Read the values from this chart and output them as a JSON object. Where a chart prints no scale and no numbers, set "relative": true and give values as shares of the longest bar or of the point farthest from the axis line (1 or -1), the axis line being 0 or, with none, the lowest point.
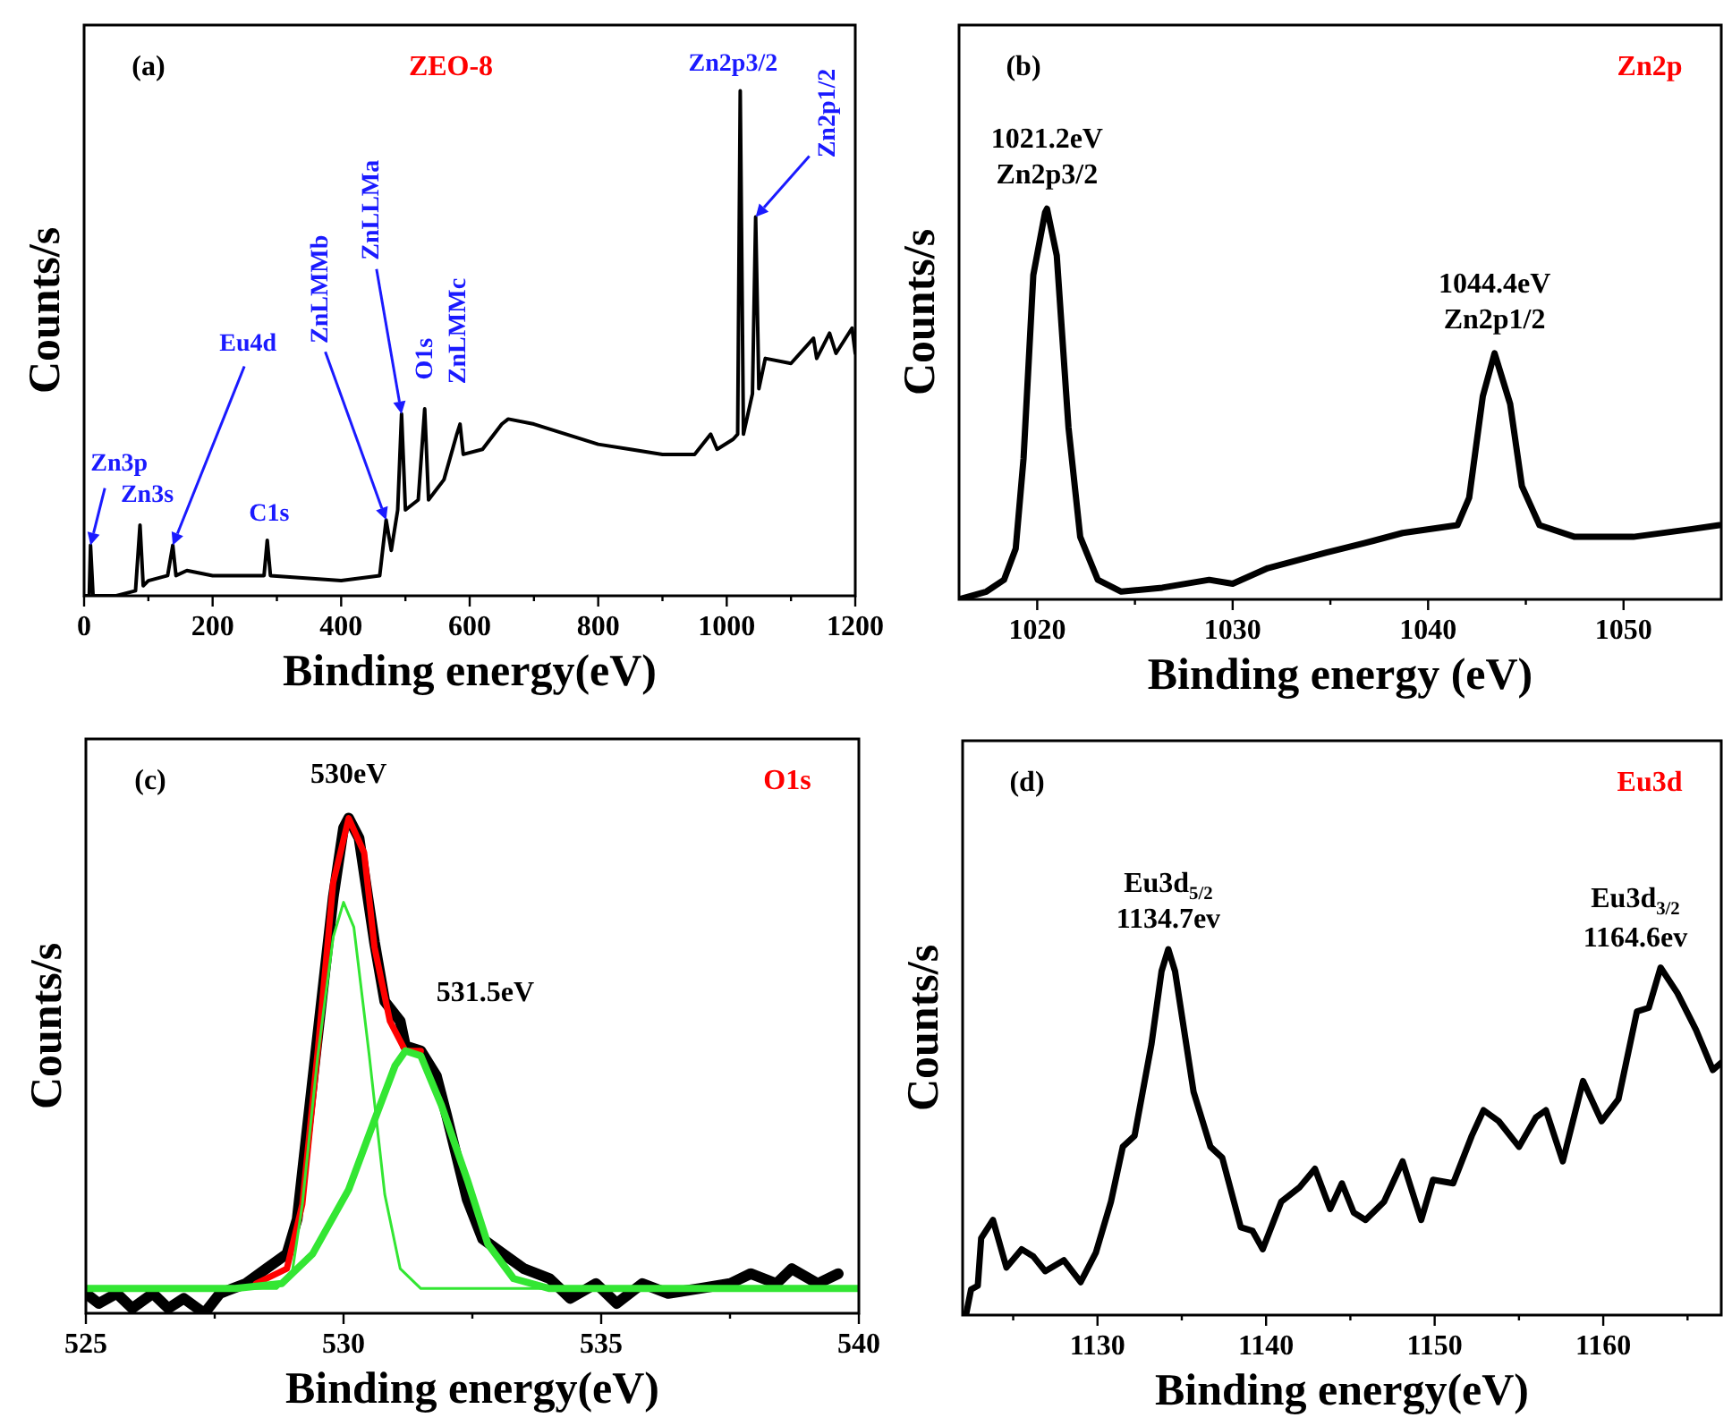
{
  "chart_data": [
    {
      "type": "line",
      "title": "(a)",
      "subtitle": "ZEO-8",
      "xlabel": "Binding energy(eV)",
      "ylabel": "Counts/s",
      "relative": true,
      "xlim": [
        0,
        1200
      ],
      "xticks": [
        0,
        {
          "value": 100,
          "label": null
        },
        200,
        {
          "value": 300,
          "label": null
        },
        400,
        {
          "value": 500,
          "label": null
        },
        600,
        {
          "value": 700,
          "label": null
        },
        800,
        {
          "value": 900,
          "label": null
        },
        1000,
        {
          "value": 1100,
          "label": null
        },
        1200
      ],
      "annotations": [
        {
          "text": "Zn3p",
          "x": 10,
          "y": 0.1
        },
        {
          "text": "Zn3s",
          "x": 87,
          "y": 0.14
        },
        {
          "text": "Eu4d",
          "x": 138,
          "y": 0.1
        },
        {
          "text": "C1s",
          "x": 285,
          "y": 0.11
        },
        {
          "text": "ZnLMMb",
          "x": 470,
          "y": 0.15
        },
        {
          "text": "ZnLLMa",
          "x": 494,
          "y": 0.36
        },
        {
          "text": "O1s",
          "x": 530,
          "y": 0.37
        },
        {
          "text": "ZnLMMc",
          "x": 585,
          "y": 0.34
        },
        {
          "text": "Zn2p3/2",
          "x": 1021,
          "y": 1.0
        },
        {
          "text": "Zn2p1/2",
          "x": 1045,
          "y": 0.75
        }
      ],
      "series": [
        {
          "color": "#000000",
          "x": [
            0,
            8,
            10,
            14,
            50,
            80,
            87,
            92,
            100,
            130,
            138,
            143,
            160,
            200,
            280,
            285,
            290,
            400,
            460,
            470,
            478,
            488,
            494,
            500,
            520,
            530,
            536,
            560,
            580,
            585,
            590,
            620,
            650,
            660,
            700,
            750,
            800,
            850,
            900,
            950,
            975,
            985,
            1010,
            1017,
            1021,
            1026,
            1040,
            1045,
            1050,
            1060,
            1100,
            1135,
            1140,
            1160,
            1170,
            1195,
            1200
          ],
          "values": [
            0,
            0,
            0.1,
            0,
            0,
            0.01,
            0.14,
            0.02,
            0.03,
            0.04,
            0.1,
            0.04,
            0.05,
            0.04,
            0.04,
            0.11,
            0.04,
            0.03,
            0.04,
            0.15,
            0.09,
            0.17,
            0.36,
            0.17,
            0.19,
            0.37,
            0.19,
            0.23,
            0.32,
            0.34,
            0.28,
            0.29,
            0.34,
            0.35,
            0.34,
            0.32,
            0.3,
            0.29,
            0.28,
            0.28,
            0.32,
            0.29,
            0.31,
            0.32,
            1.0,
            0.32,
            0.4,
            0.75,
            0.41,
            0.47,
            0.46,
            0.51,
            0.47,
            0.52,
            0.48,
            0.53,
            0.48
          ]
        }
      ]
    },
    {
      "type": "line",
      "title": "(b)",
      "subtitle": "Zn2p",
      "xlabel": "Binding energy (eV)",
      "ylabel": "Counts/s",
      "relative": true,
      "xlim": [
        1016,
        1055
      ],
      "xticks": [
        1020,
        {
          "value": 1025,
          "label": null
        },
        1030,
        {
          "value": 1035,
          "label": null
        },
        1040,
        {
          "value": 1045,
          "label": null
        },
        1050
      ],
      "annotations": [
        {
          "text": "1021.2eV\nZn2p3/2",
          "x": 1020.5,
          "y": 1.0
        },
        {
          "text": "1044.4eV\nZn2p1/2",
          "x": 1043.4,
          "y": 0.63
        }
      ],
      "series": [
        {
          "color": "#000000",
          "x": [
            1016.0,
            1017.4,
            1018.3,
            1018.9,
            1019.3,
            1019.8,
            1020.4,
            1020.5,
            1021.0,
            1021.6,
            1022.2,
            1023.1,
            1024.3,
            1026.4,
            1028.8,
            1030.0,
            1031.8,
            1034.8,
            1037.2,
            1038.7,
            1041.5,
            1042.1,
            1042.8,
            1043.4,
            1044.2,
            1044.8,
            1045.7,
            1047.5,
            1050.5,
            1053.5,
            1054.9
          ],
          "values": [
            0,
            0.02,
            0.05,
            0.13,
            0.36,
            0.83,
            0.99,
            1.0,
            0.88,
            0.44,
            0.16,
            0.05,
            0.02,
            0.03,
            0.05,
            0.04,
            0.08,
            0.12,
            0.15,
            0.17,
            0.19,
            0.26,
            0.52,
            0.63,
            0.5,
            0.29,
            0.19,
            0.16,
            0.16,
            0.18,
            0.19
          ]
        }
      ]
    },
    {
      "type": "line",
      "title": "(c)",
      "subtitle": "O1s",
      "xlabel": "Binding energy(eV)",
      "ylabel": "Counts/s",
      "relative": true,
      "xlim": [
        525,
        540
      ],
      "xticks": [
        525,
        {
          "value": 527.5,
          "label": null
        },
        530,
        {
          "value": 532.5,
          "label": null
        },
        535,
        {
          "value": 537.5,
          "label": null
        },
        540
      ],
      "annotations": [
        {
          "text": "530eV",
          "x": 530.1,
          "y": 1.0
        },
        {
          "text": "531.5eV",
          "x": 531.5,
          "y": 0.53
        }
      ],
      "series": [
        {
          "color": "#000000",
          "x": [
            525.0,
            525.25,
            525.6,
            525.9,
            526.3,
            526.6,
            526.9,
            527.3,
            527.6,
            528.1,
            528.5,
            528.9,
            529.1,
            529.4,
            529.8,
            530.0,
            530.1,
            530.3,
            530.6,
            530.8,
            531.1,
            531.2,
            531.5,
            531.8,
            532.0,
            532.4,
            532.7,
            533.1,
            533.5,
            534.0,
            534.4,
            534.9,
            535.3,
            535.8,
            536.3,
            536.9,
            537.5,
            537.9,
            538.4,
            538.7,
            539.2,
            539.6
          ],
          "values": [
            0.04,
            0.02,
            0.04,
            0.01,
            0.04,
            0.01,
            0.03,
            0,
            0.04,
            0.06,
            0.09,
            0.12,
            0.19,
            0.47,
            0.84,
            0.98,
            1.0,
            0.96,
            0.75,
            0.63,
            0.59,
            0.54,
            0.53,
            0.48,
            0.4,
            0.23,
            0.15,
            0.12,
            0.09,
            0.07,
            0.03,
            0.06,
            0.02,
            0.06,
            0.04,
            0.05,
            0.06,
            0.08,
            0.06,
            0.09,
            0.06,
            0.08
          ]
        },
        {
          "color": "#ff0000",
          "x": [
            528.3,
            528.9,
            529.2,
            529.5,
            529.8,
            530.1,
            530.4,
            530.6,
            530.9,
            531.2,
            531.5
          ],
          "values": [
            0.06,
            0.09,
            0.22,
            0.53,
            0.87,
            1.0,
            0.93,
            0.74,
            0.59,
            0.53,
            0.53
          ]
        },
        {
          "color": "#33e633",
          "x": [
            525,
            528.7,
            529.0,
            529.2,
            529.5,
            529.8,
            530.0,
            530.2,
            530.5,
            530.8,
            531.1,
            531.5,
            540
          ],
          "values": [
            0.05,
            0.05,
            0.08,
            0.22,
            0.52,
            0.76,
            0.83,
            0.78,
            0.52,
            0.24,
            0.09,
            0.05,
            0.05
          ]
        },
        {
          "color": "#33e633",
          "x": [
            525,
            527.9,
            528.8,
            529.4,
            530.1,
            530.6,
            531.0,
            531.2,
            531.5,
            531.9,
            532.4,
            532.8,
            533.3,
            534.0,
            540
          ],
          "values": [
            0.05,
            0.05,
            0.06,
            0.12,
            0.25,
            0.39,
            0.5,
            0.53,
            0.52,
            0.42,
            0.27,
            0.14,
            0.07,
            0.05,
            0.05
          ]
        }
      ]
    },
    {
      "type": "line",
      "title": "(d)",
      "subtitle": "Eu3d",
      "xlabel": "Binding energy(eV)",
      "ylabel": "Counts/s",
      "relative": true,
      "xlim": [
        1122,
        1167
      ],
      "xticks": [
        {
          "value": 1125,
          "label": null
        },
        1130,
        {
          "value": 1135,
          "label": null
        },
        1140,
        {
          "value": 1145,
          "label": null
        },
        1150,
        {
          "value": 1155,
          "label": null
        },
        1160,
        {
          "value": 1165,
          "label": null
        }
      ],
      "annotations": [
        {
          "text": "Eu3d$_{5/2}$\n1134.7ev",
          "x": 1134.2,
          "y": 1.0
        },
        {
          "text": "Eu3d$_{3/2}$\n1164.6ev",
          "x": 1163.4,
          "y": 0.95
        }
      ],
      "series": [
        {
          "color": "#000000",
          "x": [
            1122.2,
            1122.5,
            1122.9,
            1123.1,
            1123.8,
            1124.6,
            1125.5,
            1126.2,
            1126.9,
            1128.0,
            1129.0,
            1129.9,
            1130.8,
            1131.5,
            1132.2,
            1133.2,
            1133.8,
            1134.2,
            1134.6,
            1135.7,
            1136.7,
            1137.4,
            1138.5,
            1139.2,
            1139.8,
            1140.9,
            1142.0,
            1142.9,
            1143.8,
            1144.5,
            1145.2,
            1145.9,
            1147.0,
            1148.1,
            1149.2,
            1149.9,
            1151.1,
            1152.2,
            1152.9,
            1153.8,
            1155.0,
            1156.0,
            1156.6,
            1157.6,
            1158.8,
            1159.9,
            1160.9,
            1162.0,
            1162.7,
            1163.4,
            1164.4,
            1165.5,
            1166.5,
            1167
          ],
          "values": [
            0,
            0.07,
            0.08,
            0.21,
            0.26,
            0.13,
            0.18,
            0.16,
            0.12,
            0.15,
            0.09,
            0.17,
            0.31,
            0.46,
            0.49,
            0.74,
            0.94,
            1.0,
            0.94,
            0.61,
            0.46,
            0.43,
            0.24,
            0.23,
            0.18,
            0.31,
            0.35,
            0.4,
            0.29,
            0.36,
            0.28,
            0.26,
            0.31,
            0.42,
            0.26,
            0.37,
            0.36,
            0.49,
            0.56,
            0.53,
            0.46,
            0.54,
            0.56,
            0.42,
            0.64,
            0.53,
            0.59,
            0.83,
            0.84,
            0.95,
            0.88,
            0.78,
            0.67,
            0.69
          ]
        }
      ]
    }
  ]
}
